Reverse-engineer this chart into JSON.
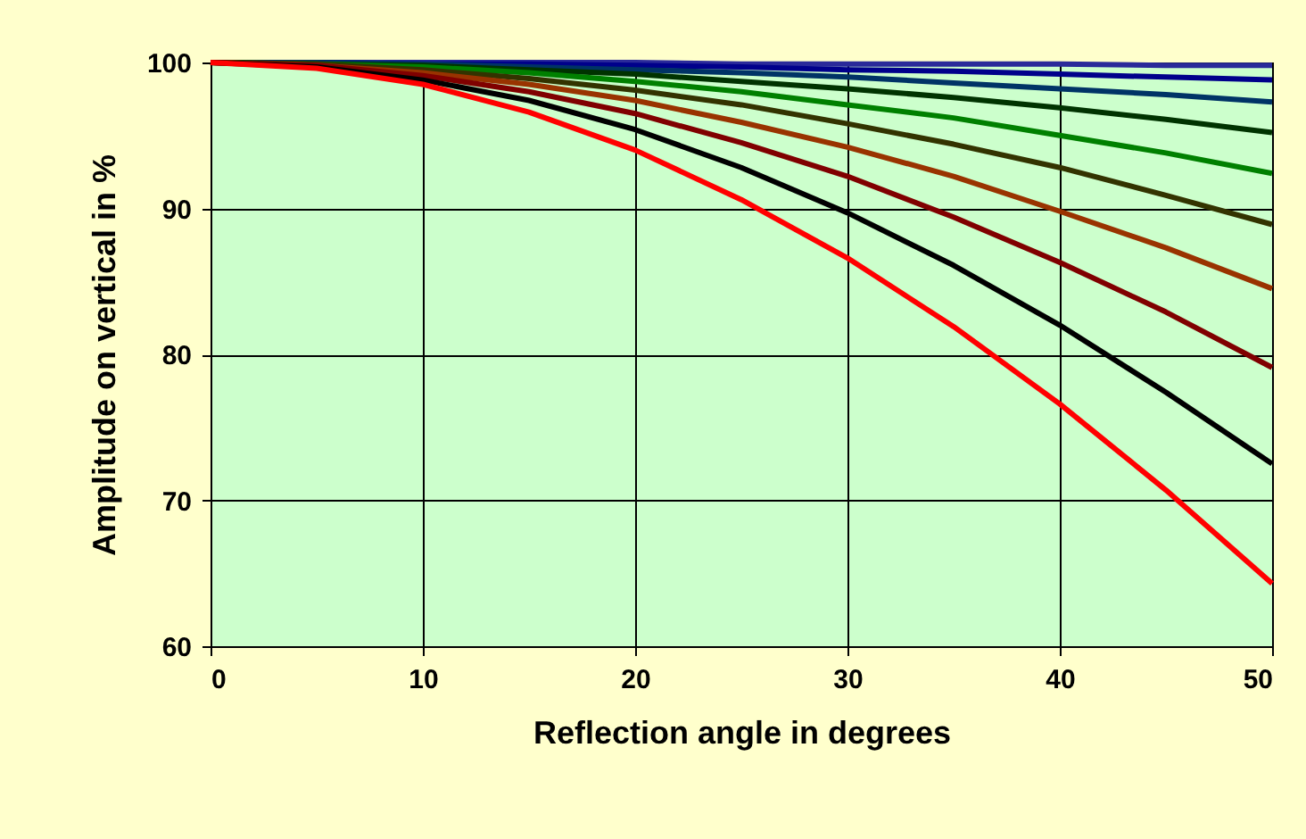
{
  "chart_data": {
    "type": "line",
    "xlabel": "Reflection angle in degrees",
    "ylabel": "Amplitude on vertical in %",
    "x": [
      0,
      5,
      10,
      15,
      20,
      25,
      30,
      35,
      40,
      45,
      50
    ],
    "xlim": [
      0,
      50
    ],
    "xticks": [
      0,
      10,
      20,
      30,
      40,
      50
    ],
    "ylim": [
      60,
      100
    ],
    "yticks": [
      60,
      70,
      80,
      90,
      100
    ],
    "grid": true,
    "legend": false,
    "marker": "none",
    "line_style": "solid",
    "series": [
      {
        "color": "#2a2a9a",
        "values": [
          100,
          100,
          100,
          100,
          100,
          99.9,
          99.9,
          99.9,
          99.9,
          99.8,
          99.8
        ]
      },
      {
        "color": "#00008b",
        "values": [
          100,
          100,
          99.9,
          99.9,
          99.8,
          99.7,
          99.5,
          99.4,
          99.2,
          99.0,
          98.8
        ]
      },
      {
        "color": "#003366",
        "values": [
          100,
          100,
          99.9,
          99.7,
          99.5,
          99.3,
          99.0,
          98.6,
          98.2,
          97.8,
          97.3
        ]
      },
      {
        "color": "#003300",
        "values": [
          100,
          99.9,
          99.8,
          99.5,
          99.2,
          98.7,
          98.2,
          97.6,
          96.9,
          96.1,
          95.2
        ]
      },
      {
        "color": "#008000",
        "values": [
          100,
          99.9,
          99.7,
          99.3,
          98.7,
          98.0,
          97.1,
          96.2,
          95.0,
          93.8,
          92.4
        ]
      },
      {
        "color": "#333300",
        "values": [
          100,
          99.9,
          99.5,
          98.9,
          98.1,
          97.1,
          95.8,
          94.4,
          92.8,
          90.9,
          88.9
        ]
      },
      {
        "color": "#993300",
        "values": [
          100,
          99.8,
          99.3,
          98.5,
          97.4,
          95.9,
          94.2,
          92.2,
          89.8,
          87.3,
          84.5
        ]
      },
      {
        "color": "#800000",
        "values": [
          100,
          99.8,
          99.1,
          98.0,
          96.5,
          94.5,
          92.2,
          89.4,
          86.3,
          82.9,
          79.1
        ]
      },
      {
        "color": "#000000",
        "values": [
          100,
          99.7,
          98.8,
          97.4,
          95.4,
          92.8,
          89.7,
          86.1,
          82.0,
          77.4,
          72.5
        ]
      },
      {
        "color": "#ff0000",
        "values": [
          100,
          99.6,
          98.5,
          96.6,
          94.0,
          90.6,
          86.6,
          81.9,
          76.6,
          70.7,
          64.3
        ]
      }
    ]
  }
}
